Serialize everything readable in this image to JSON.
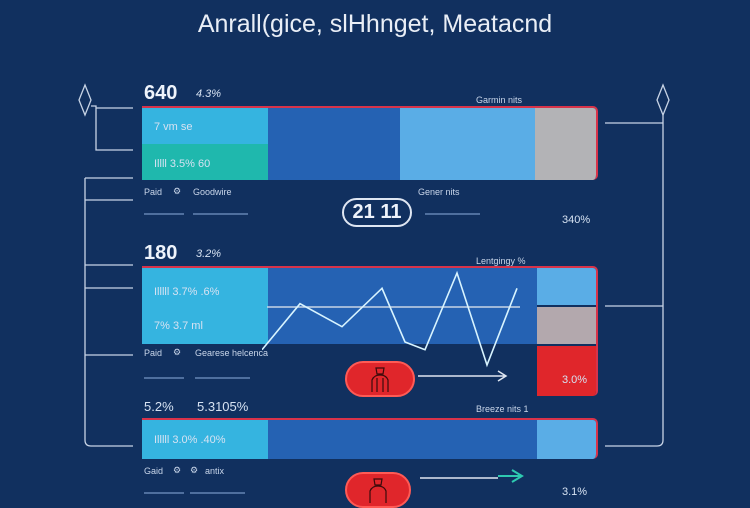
{
  "title": "Anrall(gice, slHhnget, Meatacnd",
  "panel1": {
    "value": "640",
    "pct": "4.3%",
    "right_label": "Garmin nits",
    "row1": "7 vm se",
    "row2": "Illll 3.5% 60",
    "foot_left": "Paid",
    "foot_mid": "Goodwire",
    "foot_right": "Gener nits",
    "badge": "21 11",
    "side_pct": "340%"
  },
  "panel2": {
    "value": "180",
    "pct": "3.2%",
    "right_label": "Lentgingy %",
    "row1": "Illlll 3.7% .6%",
    "row2": "7% 3.7 ml",
    "foot_left": "Paid",
    "foot_mid": "Gearese helcenca",
    "side_pct": "3.0%",
    "chart_values": [
      0,
      6,
      3,
      8,
      1,
      0,
      10,
      -2,
      8
    ]
  },
  "panel3": {
    "value": "5.2%",
    "pct": "5.3105%",
    "right_label": "Breeze nits 1",
    "row1": "Illlll 3.0% .40%",
    "foot_left": "Gaid",
    "foot_mid": "antix",
    "side_pct": "3.1%"
  },
  "colors": {
    "bg": "#11305f",
    "cyan": "#35b4e0",
    "teal": "#1fb8ad",
    "blue": "#2562b3",
    "light": "#5aade6",
    "gray": "#b3b3b6",
    "red": "#e0262b"
  }
}
